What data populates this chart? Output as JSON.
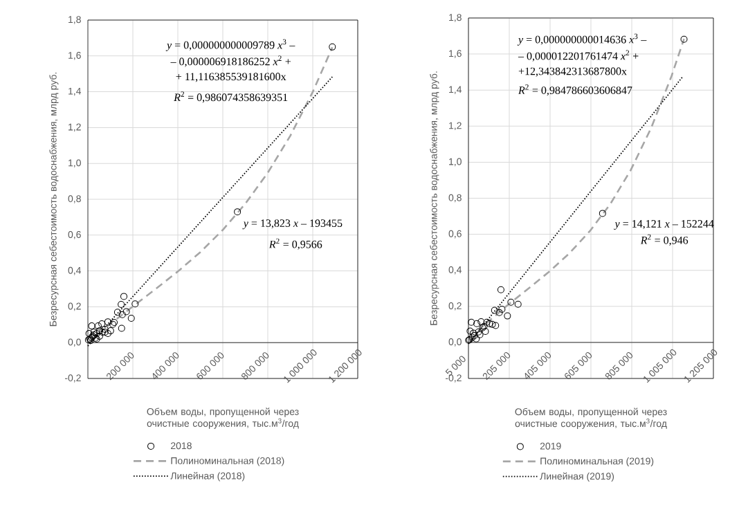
{
  "chart_data": [
    {
      "type": "scatter",
      "xlabel": "Объем воды, пропущенной через очистные сооружения, тыс.м$^{3}$/год",
      "ylabel": "Безресурсная себестоимость водоснабжения, млрд руб.",
      "xlim": [
        0,
        1200000
      ],
      "ylim": [
        -0.2,
        1.8
      ],
      "xticks": [
        {
          "value": 200000,
          "label": "200 000"
        },
        {
          "value": 400000,
          "label": "400 000"
        },
        {
          "value": 600000,
          "label": "600 000"
        },
        {
          "value": 800000,
          "label": "800 000"
        },
        {
          "value": 1000000,
          "label": "1 000 000"
        },
        {
          "value": 1200000,
          "label": "1 200 000"
        }
      ],
      "yticks": [
        {
          "value": -0.2,
          "label": "-0,2"
        },
        {
          "value": 0,
          "label": "0,0"
        },
        {
          "value": 0.2,
          "label": "0,2"
        },
        {
          "value": 0.4,
          "label": "0,4"
        },
        {
          "value": 0.6,
          "label": "0,6"
        },
        {
          "value": 0.8,
          "label": "0,8"
        },
        {
          "value": 1.0,
          "label": "1,0"
        },
        {
          "value": 1.2,
          "label": "1,2"
        },
        {
          "value": 1.4,
          "label": "1,4"
        },
        {
          "value": 1.6,
          "label": "1,6"
        },
        {
          "value": 1.8,
          "label": "1,8"
        }
      ],
      "grid": true,
      "legend": "bottom",
      "annotations": [
        "*y* = 0,000000000009789 *x*$^{3}$ –",
        "– 0,000006918186252 *x*$^{2}$ +",
        "+ 11,116385539181600x",
        "*R*$^{2}$ = 0,986074358639351",
        "*y* = 13,823 *x* – 193455",
        "*R*$^{2}$ = 0,9566"
      ],
      "series": [
        {
          "name": "2018",
          "marker": "circle",
          "color": "#000000",
          "x": [
            1087000,
            665000,
            210000,
            160000,
            148000,
            132000,
            171000,
            153000,
            193000,
            150000,
            117000,
            89000,
            111000,
            62000,
            46000,
            17000,
            76000,
            89000,
            76000,
            52000,
            39000,
            5000,
            27000,
            17000,
            9000,
            2500,
            21000,
            33000,
            39000,
            52000,
            64000,
            101000,
            12000,
            27000
          ],
          "values": [
            1.65,
            0.73,
            0.216,
            0.258,
            0.213,
            0.17,
            0.173,
            0.156,
            0.136,
            0.08,
            0.113,
            0.116,
            0.102,
            0.105,
            0.093,
            0.093,
            0.074,
            0.051,
            0.059,
            0.066,
            0.051,
            0.051,
            0.043,
            0.028,
            0.02,
            0.015,
            0.036,
            0.025,
            0.02,
            0.036,
            0.059,
            0.066,
            0.012,
            0.059
          ]
        },
        {
          "name": "Полиноминальная (2018)",
          "type": "line",
          "line_style": "dashed",
          "color": "#a6a6a6",
          "x": [
            0,
            100000,
            200000,
            300000,
            400000,
            500000,
            600000,
            700000,
            800000,
            900000,
            1000000,
            1087000
          ],
          "values": [
            0,
            0.105,
            0.202,
            0.298,
            0.397,
            0.505,
            0.629,
            0.775,
            0.948,
            1.154,
            1.399,
            1.648
          ]
        },
        {
          "name": "Линейная (2018)",
          "type": "line",
          "line_style": "dotted",
          "color": "#000000",
          "x": [
            0,
            1087000
          ],
          "values": [
            -0.019,
            1.483
          ]
        }
      ]
    },
    {
      "type": "scatter",
      "xlabel": "Объем воды, пропущенной через очистные сооружения, тыс.м$^{3}$/год",
      "ylabel": "Безресурсная себестоимость водоснабжения, млрд руб.",
      "xlim": [
        5000,
        1205000
      ],
      "ylim": [
        -0.2,
        1.8
      ],
      "xticks": [
        {
          "value": 5000,
          "label": "5 000"
        },
        {
          "value": 205000,
          "label": "205 000"
        },
        {
          "value": 405000,
          "label": "405 000"
        },
        {
          "value": 605000,
          "label": "605 000"
        },
        {
          "value": 805000,
          "label": "805 000"
        },
        {
          "value": 1005000,
          "label": "1 005 000"
        },
        {
          "value": 1205000,
          "label": "1 205 000"
        }
      ],
      "yticks": [
        {
          "value": -0.2,
          "label": "-0,2"
        },
        {
          "value": 0,
          "label": "0,0"
        },
        {
          "value": 0.2,
          "label": "0,2"
        },
        {
          "value": 0.4,
          "label": "0,4"
        },
        {
          "value": 0.6,
          "label": "0,6"
        },
        {
          "value": 0.8,
          "label": "0,8"
        },
        {
          "value": 1.0,
          "label": "1,0"
        },
        {
          "value": 1.2,
          "label": "1,2"
        },
        {
          "value": 1.4,
          "label": "1,4"
        },
        {
          "value": 1.6,
          "label": "1,6"
        },
        {
          "value": 1.8,
          "label": "1,8"
        }
      ],
      "grid": true,
      "legend": "bottom",
      "annotations": [
        "*y* = 0,000000000014636 *x*$^{3}$ –",
        "– 0,000012201761474 *x*$^{2}$ +",
        "+12,343842313687800x",
        "*R*$^{2}$ = 0,984786603606847",
        "*y* = 14,121 *x* – 152244",
        "*R*$^{2}$ = 0,946"
      ],
      "series": [
        {
          "name": "2019",
          "marker": "circle",
          "color": "#000000",
          "x": [
            1061000,
            662000,
            248000,
            213000,
            196000,
            164000,
            169000,
            156000,
            133000,
            138000,
            122000,
            95000,
            88000,
            67000,
            46000,
            19000,
            74000,
            54000,
            13000,
            34000,
            43000,
            24000,
            10000,
            29000,
            61000,
            6000,
            108000,
            81000
          ],
          "values": [
            1.682,
            0.716,
            0.212,
            0.223,
            0.147,
            0.292,
            0.184,
            0.166,
            0.178,
            0.094,
            0.1,
            0.112,
            0.061,
            0.115,
            0.104,
            0.112,
            0.081,
            0.058,
            0.063,
            0.038,
            0.02,
            0.028,
            0.015,
            0.051,
            0.043,
            0.012,
            0.104,
            0.089
          ]
        },
        {
          "name": "Полиноминальная (2019)",
          "type": "line",
          "line_style": "dashed",
          "color": "#a6a6a6",
          "x": [
            5000,
            100000,
            200000,
            300000,
            400000,
            500000,
            600000,
            700000,
            800000,
            900000,
            1000000,
            1061000
          ],
          "values": [
            0.006,
            0.113,
            0.21,
            0.3,
            0.392,
            0.495,
            0.618,
            0.768,
            0.956,
            1.19,
            1.478,
            1.684
          ]
        },
        {
          "name": "Линейная (2019)",
          "type": "line",
          "line_style": "dotted",
          "color": "#000000",
          "x": [
            5000,
            1053000
          ],
          "values": [
            -0.008,
            1.472
          ]
        }
      ]
    }
  ]
}
